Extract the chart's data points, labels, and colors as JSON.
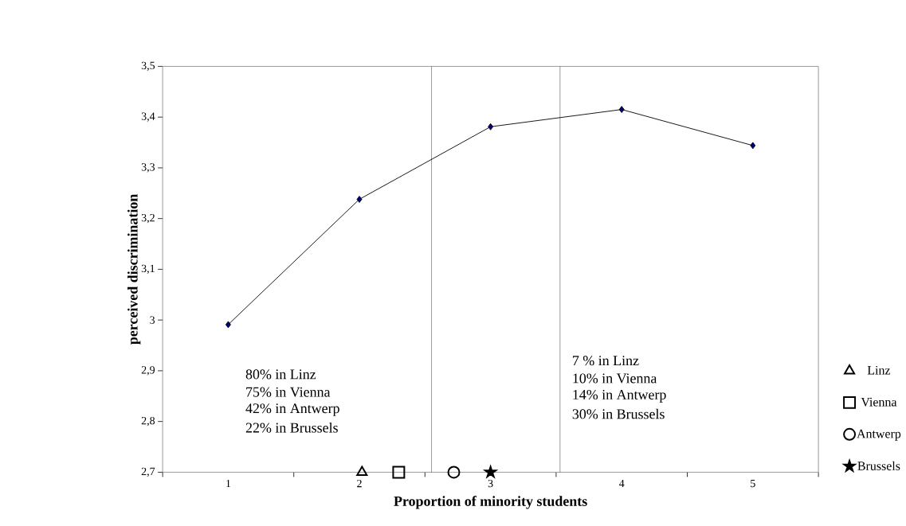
{
  "chart_data": {
    "type": "line",
    "xlabel": "Proportion of minority students",
    "ylabel": "perceived discrimination",
    "xlim": [
      0.5,
      5.5
    ],
    "xticks": [
      1,
      2,
      3,
      4,
      5
    ],
    "ylim": [
      2.7,
      3.5
    ],
    "yticks": [
      {
        "value": 2.7,
        "label": "2,7"
      },
      {
        "value": 2.8,
        "label": "2,8"
      },
      {
        "value": 2.9,
        "label": "2,9"
      },
      3,
      {
        "value": 3.1,
        "label": "3,1"
      },
      {
        "value": 3.2,
        "label": "3,2"
      },
      {
        "value": 3.3,
        "label": "3,3"
      },
      {
        "value": 3.4,
        "label": "3,4"
      },
      {
        "value": 3.5,
        "label": "3,5"
      }
    ],
    "series": [
      {
        "color": "#000000",
        "marker": "diamond",
        "x": [
          1,
          2,
          3,
          4,
          5
        ],
        "values": [
          2.991,
          3.238,
          3.381,
          3.415,
          3.344
        ]
      },
      {
        "type": "scatter",
        "name": "Linz",
        "color": "#000000",
        "marker": "triangle",
        "x": [
          2.02
        ],
        "values": [
          2.7
        ]
      },
      {
        "type": "scatter",
        "name": "Vienna",
        "color": "#000000",
        "marker": "square",
        "x": [
          2.3
        ],
        "values": [
          2.7
        ]
      },
      {
        "type": "scatter",
        "name": "Antwerp",
        "color": "#000000",
        "marker": "circle",
        "x": [
          2.72
        ],
        "values": [
          2.7
        ]
      },
      {
        "type": "scatter",
        "name": "Brussels",
        "color": "#000000",
        "marker": "star",
        "x": [
          3.0
        ],
        "values": [
          2.7
        ]
      }
    ],
    "ref_lines": [
      {
        "axis": "x",
        "value": 2.55,
        "color": "#000000"
      },
      {
        "axis": "x",
        "value": 3.53,
        "color": "#000000"
      }
    ],
    "annotations": [
      "80% in Linz",
      "75% in Vienna",
      "42% in Antwerp",
      "22% in Brussels",
      "7 % in Linz",
      "10% in Vienna",
      "14% in Antwerp",
      "30% in Brussels"
    ],
    "legend": "right",
    "grid": false
  }
}
